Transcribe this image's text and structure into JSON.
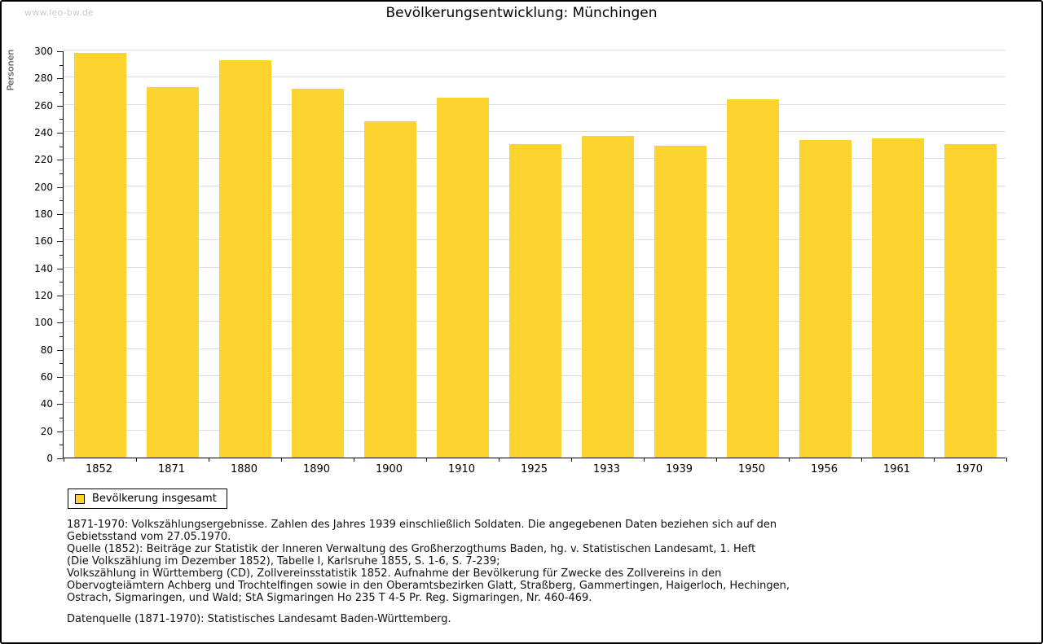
{
  "page": {
    "watermark": "www.leo-bw.de",
    "title": "Bevölkerungsentwicklung: Münchingen"
  },
  "chart_data": {
    "type": "bar",
    "title": "Bevölkerungsentwicklung: Münchingen",
    "xlabel": "",
    "ylabel": "Personen",
    "categories": [
      "1852",
      "1871",
      "1880",
      "1890",
      "1900",
      "1910",
      "1925",
      "1933",
      "1939",
      "1950",
      "1956",
      "1961",
      "1970"
    ],
    "values": [
      298,
      273,
      293,
      272,
      248,
      265,
      231,
      237,
      230,
      264,
      234,
      235,
      231
    ],
    "series_name": "Bevölkerung insgesamt",
    "ylim": [
      0,
      300
    ],
    "ytick_step": 20,
    "ytick_minor_step": 10,
    "grid": true,
    "legend_position": "bottom-left",
    "bar_color": "#FCD32F"
  },
  "legend": {
    "label": "Bevölkerung insgesamt",
    "swatch_color": "#FCD32F"
  },
  "footer": {
    "lines": [
      "1871-1970: Volkszählungsergebnisse. Zahlen des Jahres 1939 einschließlich Soldaten. Die angegebenen Daten beziehen sich auf den",
      "Gebietsstand vom 27.05.1970.",
      "Quelle (1852): Beiträge zur Statistik der Inneren Verwaltung des Großherzogthums Baden, hg. v. Statistischen Landesamt, 1. Heft",
      "(Die Volkszählung im Dezember 1852), Tabelle I, Karlsruhe 1855, S. 1-6, S. 7-239;",
      "Volkszählung in Württemberg (CD), Zollvereinsstatistik 1852. Aufnahme der Bevölkerung für Zwecke des Zollvereins in den",
      "Obervogteiämtern Achberg und Trochtelfingen sowie in den Oberamtsbezirken Glatt, Straßberg, Gammertingen, Haigerloch, Hechingen,",
      "Ostrach, Sigmaringen, und Wald; StA Sigmaringen Ho 235 T 4-5 Pr. Reg. Sigmaringen, Nr. 460-469."
    ],
    "datasource": "Datenquelle (1871-1970): Statistisches Landesamt Baden-Württemberg."
  },
  "colors": {
    "bar": "#FCD32F",
    "grid": "#DDDDDD",
    "axis": "#000000",
    "watermark": "#C9C9C9"
  }
}
